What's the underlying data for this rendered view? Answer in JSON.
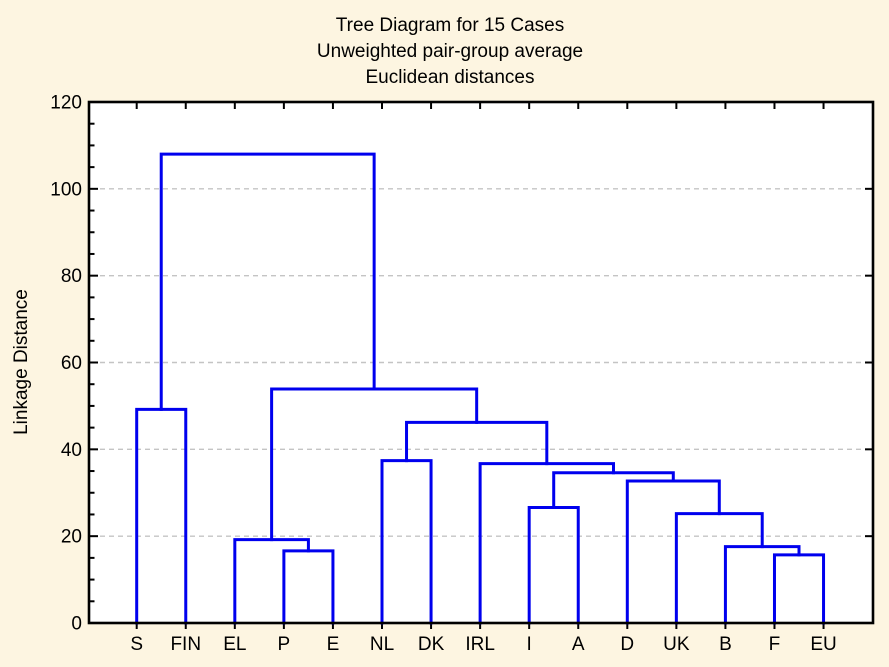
{
  "title": {
    "line1": "Tree Diagram for 15 Cases",
    "line2": "Unweighted pair-group average",
    "line3": "Euclidean distances"
  },
  "y_axis": {
    "label": "Linkage Distance",
    "tick_values": [
      0,
      20,
      40,
      60,
      80,
      100,
      120
    ],
    "minor_tick_step": 5,
    "min": 0,
    "max": 120,
    "gridlines_at": [
      20,
      40,
      60,
      80,
      100
    ]
  },
  "x_axis": {
    "leaf_labels": [
      "S",
      "FIN",
      "EL",
      "P",
      "E",
      "NL",
      "DK",
      "IRL",
      "I",
      "A",
      "D",
      "UK",
      "B",
      "F",
      "EU"
    ]
  },
  "colors": {
    "background": "#FDF5E1",
    "plot_background": "#FFFFFF",
    "link_line": "#0000EE",
    "frame": "#000000",
    "gridline": "#C4C4C4",
    "text": "#000000"
  },
  "chart_data": {
    "type": "dendrogram",
    "title": "Tree Diagram for 15 Cases",
    "subtitle1": "Unweighted pair-group average",
    "subtitle2": "Euclidean distances",
    "ylabel": "Linkage Distance",
    "ylim": [
      0,
      120
    ],
    "grid": "dashed horizontal at major ticks",
    "legend": "none",
    "leaves": [
      "S",
      "FIN",
      "EL",
      "P",
      "E",
      "NL",
      "DK",
      "IRL",
      "I",
      "A",
      "D",
      "UK",
      "B",
      "F",
      "EU"
    ],
    "merges": [
      {
        "id": "m0",
        "a": "F",
        "b": "EU",
        "height": 15.7
      },
      {
        "id": "m1",
        "a": "P",
        "b": "E",
        "height": 16.6
      },
      {
        "id": "m2",
        "a": "B",
        "b": "m0",
        "height": 17.6
      },
      {
        "id": "m3",
        "a": "EL",
        "b": "m1",
        "height": 19.2
      },
      {
        "id": "m4",
        "a": "UK",
        "b": "m2",
        "height": 25.2
      },
      {
        "id": "m5",
        "a": "I",
        "b": "A",
        "height": 26.6
      },
      {
        "id": "m6",
        "a": "D",
        "b": "m4",
        "height": 32.7
      },
      {
        "id": "m7",
        "a": "m5",
        "b": "m6",
        "height": 34.6
      },
      {
        "id": "m8",
        "a": "IRL",
        "b": "m7",
        "height": 36.7
      },
      {
        "id": "m9",
        "a": "NL",
        "b": "DK",
        "height": 37.4
      },
      {
        "id": "m10",
        "a": "m9",
        "b": "m8",
        "height": 46.2
      },
      {
        "id": "m11",
        "a": "m3",
        "b": "m10",
        "height": 53.9
      },
      {
        "id": "m12",
        "a": "S",
        "b": "FIN",
        "height": 49.2
      },
      {
        "id": "m13",
        "a": "m12",
        "b": "m11",
        "height": 108.0
      }
    ]
  }
}
